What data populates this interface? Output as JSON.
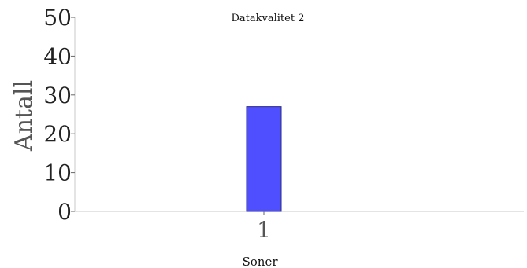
{
  "chart_data": {
    "type": "bar",
    "title": "Datakvalitet 2",
    "xlabel": "Soner",
    "ylabel": "Antall",
    "categories": [
      "1"
    ],
    "values": [
      27
    ],
    "ylim": [
      0,
      50
    ],
    "yticks": [
      0,
      10,
      20,
      30,
      40,
      50
    ],
    "bar_color": "#4f4fff",
    "bar_edge_color": "#2a2a80",
    "grid": false,
    "legend": false
  }
}
